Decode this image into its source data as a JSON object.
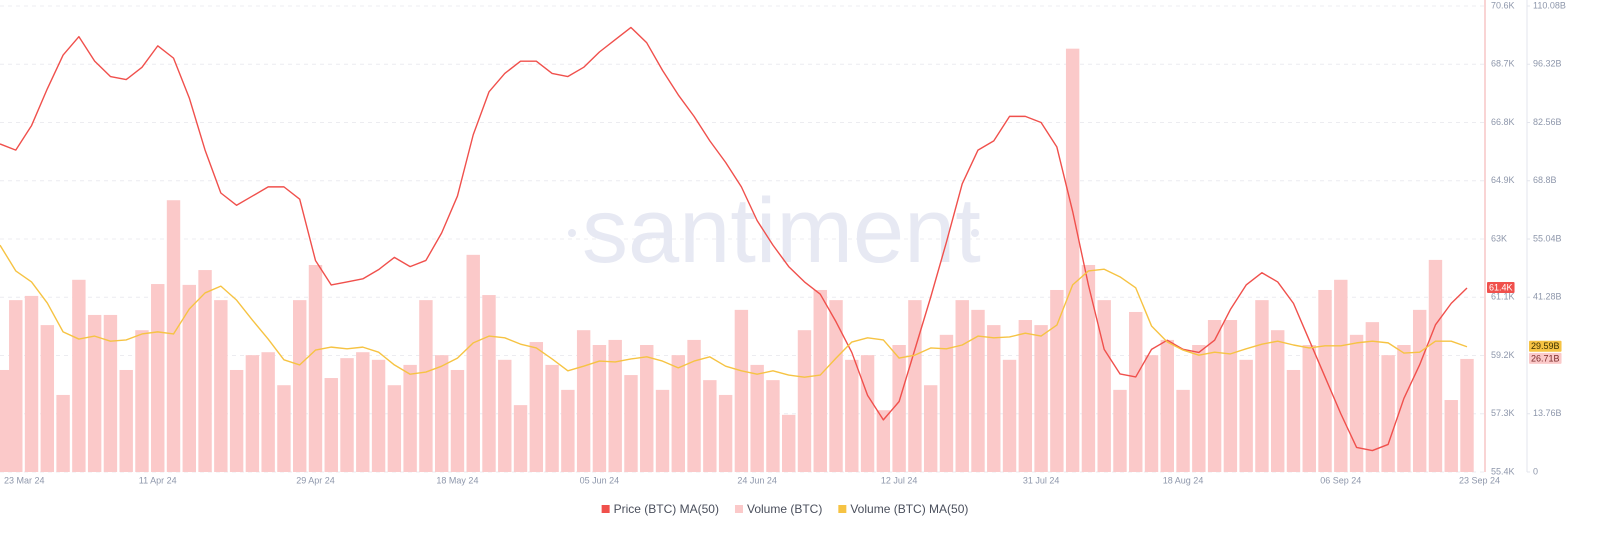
{
  "chart_data": {
    "type": "line",
    "watermark": "santiment",
    "categories": [
      null,
      "23 Mar 24",
      null,
      null,
      null,
      null,
      null,
      null,
      null,
      null,
      "11 Apr 24",
      null,
      null,
      null,
      null,
      null,
      null,
      null,
      null,
      null,
      "29 Apr 24",
      null,
      null,
      null,
      null,
      null,
      null,
      null,
      null,
      "18 May 24",
      null,
      null,
      null,
      null,
      null,
      null,
      null,
      null,
      "05 Jun 24",
      null,
      null,
      null,
      null,
      null,
      null,
      null,
      null,
      null,
      "24 Jun 24",
      null,
      null,
      null,
      null,
      null,
      null,
      null,
      null,
      "12 Jul 24",
      null,
      null,
      null,
      null,
      null,
      null,
      null,
      null,
      "31 Jul 24",
      null,
      null,
      null,
      null,
      null,
      null,
      null,
      null,
      "18 Aug 24",
      null,
      null,
      null,
      null,
      null,
      null,
      null,
      null,
      null,
      "06 Sep 24",
      null,
      null,
      null,
      null,
      null,
      null,
      null,
      "23 Sep 24"
    ],
    "ylim": [
      55.4,
      70.6
    ],
    "yticks": [
      {
        "value": 55.4,
        "label": "55.4K"
      },
      {
        "value": 57.3,
        "label": "57.3K"
      },
      {
        "value": 59.2,
        "label": "59.2K"
      },
      {
        "value": 61.1,
        "label": "61.1K"
      },
      {
        "value": 63,
        "label": "63K"
      },
      {
        "value": 64.9,
        "label": "64.9K"
      },
      {
        "value": 66.8,
        "label": "66.8K"
      },
      {
        "value": 68.7,
        "label": "68.7K"
      },
      {
        "value": 70.6,
        "label": "70.6K"
      }
    ],
    "y2lim": [
      0,
      110.08
    ],
    "y2ticks": [
      0,
      {
        "value": 13.76,
        "label": "13.76B"
      },
      {
        "value": 41.28,
        "label": "41.28B"
      },
      {
        "value": 55.04,
        "label": "55.04B"
      },
      {
        "value": 68.8,
        "label": "68.8B"
      },
      {
        "value": 82.56,
        "label": "82.56B"
      },
      {
        "value": 96.32,
        "label": "96.32B"
      },
      {
        "value": 110.08,
        "label": "110.08B"
      }
    ],
    "grid": true,
    "series": [
      {
        "name": "Price (BTC) MA(50)",
        "type": "line",
        "color": "#f0504c",
        "last_label": "61.4K",
        "values": [
          66.1,
          65.9,
          66.7,
          67.9,
          69.0,
          69.6,
          68.8,
          68.3,
          68.2,
          68.6,
          69.3,
          68.9,
          67.6,
          65.9,
          64.5,
          64.1,
          64.4,
          64.7,
          64.7,
          64.3,
          62.3,
          61.5,
          61.6,
          61.7,
          62.0,
          62.4,
          62.1,
          62.3,
          63.2,
          64.4,
          66.4,
          67.8,
          68.4,
          68.8,
          68.8,
          68.4,
          68.3,
          68.6,
          69.1,
          69.5,
          69.9,
          69.4,
          68.5,
          67.7,
          67.0,
          66.2,
          65.5,
          64.7,
          63.6,
          62.8,
          62.1,
          61.6,
          61.2,
          60.3,
          59.3,
          57.9,
          57.1,
          57.7,
          59.4,
          61.1,
          62.9,
          64.8,
          65.9,
          66.2,
          67.0,
          67.0,
          66.8,
          66.0,
          63.9,
          61.5,
          59.4,
          58.6,
          58.5,
          59.4,
          59.7,
          59.4,
          59.3,
          59.7,
          60.7,
          61.5,
          61.9,
          61.6,
          60.9,
          59.7,
          58.5,
          57.3,
          56.2,
          56.1,
          56.3,
          57.8,
          58.9,
          60.2,
          60.9,
          61.4
        ]
      },
      {
        "name": "Volume (BTC)",
        "type": "bar",
        "axis": "y2",
        "color": "#fbc9c9",
        "last_label": "26.71B",
        "values": [
          24.1,
          40.6,
          41.6,
          34.7,
          18.2,
          45.4,
          37.1,
          37.1,
          24.1,
          33.5,
          44.4,
          64.2,
          44.2,
          47.7,
          40.6,
          24.1,
          27.6,
          28.3,
          20.5,
          40.6,
          48.9,
          22.2,
          26.9,
          28.3,
          26.5,
          20.5,
          25.3,
          40.6,
          27.6,
          24.1,
          51.3,
          41.8,
          26.5,
          15.8,
          30.7,
          25.3,
          19.4,
          33.5,
          30.0,
          31.2,
          22.9,
          30.0,
          19.4,
          27.6,
          31.2,
          21.7,
          18.2,
          38.3,
          25.3,
          21.7,
          13.5,
          33.5,
          43.0,
          40.6,
          26.5,
          27.6,
          14.6,
          30.0,
          40.6,
          20.5,
          32.4,
          40.6,
          38.3,
          34.7,
          26.5,
          35.9,
          34.7,
          43.0,
          100,
          48.9,
          40.6,
          19.4,
          37.8,
          27.6,
          31.2,
          19.4,
          30.0,
          35.9,
          35.9,
          26.5,
          40.6,
          33.5,
          24.1,
          30.0,
          43.0,
          45.4,
          32.4,
          35.4,
          27.6,
          30.0,
          38.3,
          50.1,
          17.0,
          26.71
        ]
      },
      {
        "name": "Volume (BTC) MA(50)",
        "type": "line",
        "axis": "y2",
        "color": "#f6c343",
        "last_label": "29.59B",
        "values": [
          53.6,
          47.5,
          44.9,
          39.9,
          33.1,
          31.4,
          32.1,
          30.9,
          31.2,
          32.6,
          33.1,
          32.6,
          38.5,
          42.3,
          43.9,
          40.6,
          35.9,
          31.4,
          26.5,
          25.3,
          28.8,
          29.5,
          29.1,
          29.5,
          28.3,
          25.3,
          23.1,
          23.6,
          25.0,
          26.9,
          30.5,
          32.1,
          31.7,
          30.2,
          29.3,
          26.7,
          23.9,
          25.0,
          26.2,
          26.0,
          26.7,
          27.2,
          26.2,
          24.6,
          26.2,
          27.2,
          25.0,
          23.9,
          23.1,
          23.9,
          22.9,
          22.4,
          22.9,
          26.9,
          30.7,
          31.7,
          31.2,
          26.9,
          27.6,
          29.3,
          29.1,
          30.0,
          32.1,
          31.7,
          31.9,
          32.8,
          32.1,
          34.7,
          44.2,
          47.5,
          47.9,
          46.1,
          43.5,
          34.5,
          30.7,
          28.8,
          27.6,
          28.3,
          27.9,
          29.1,
          30.2,
          30.9,
          30.0,
          29.3,
          29.8,
          29.8,
          30.5,
          30.9,
          30.5,
          28.1,
          28.3,
          30.9,
          30.9,
          29.59
        ]
      }
    ]
  }
}
